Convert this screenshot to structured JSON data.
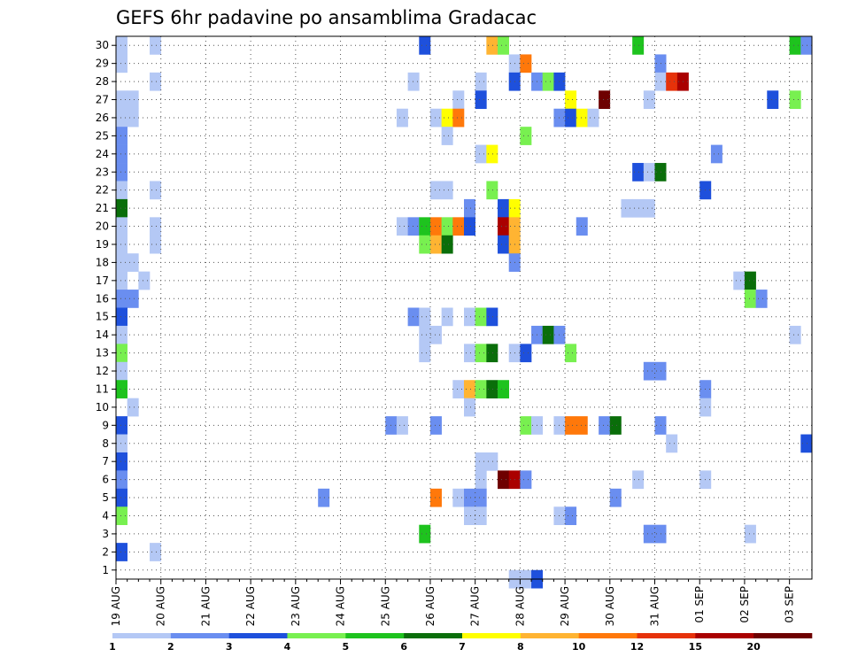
{
  "chart_data": {
    "type": "heatmap",
    "title": "GEFS 6hr padavine po ansamblima Gradacac",
    "xlabel": "",
    "ylabel": "",
    "x_tick_labels": [
      "19 AUG",
      "20 AUG",
      "21 AUG",
      "22 AUG",
      "23 AUG",
      "24 AUG",
      "25 AUG",
      "26 AUG",
      "27 AUG",
      "28 AUG",
      "29 AUG",
      "30 AUG",
      "31 AUG",
      "01 SEP",
      "02 SEP",
      "03 SEP"
    ],
    "y_tick_labels": [
      "1",
      "2",
      "3",
      "4",
      "5",
      "6",
      "7",
      "8",
      "9",
      "10",
      "11",
      "12",
      "13",
      "14",
      "15",
      "16",
      "17",
      "18",
      "19",
      "20",
      "21",
      "22",
      "23",
      "24",
      "25",
      "26",
      "27",
      "28",
      "29",
      "30"
    ],
    "x_unit": "6h step from 19 AUG 00 UTC",
    "x_range": [
      0,
      61
    ],
    "y_range": [
      0.5,
      30.5
    ],
    "grid": true,
    "colorbar": {
      "labels": [
        "1",
        "2",
        "3",
        "4",
        "5",
        "6",
        "7",
        "8",
        "10",
        "12",
        "15",
        "20"
      ],
      "colors": [
        "#b4c8f5",
        "#6a8ef0",
        "#1e50dc",
        "#78f050",
        "#1ec31e",
        "#0a6e0a",
        "#ffff00",
        "#ffb432",
        "#ff780a",
        "#e6320a",
        "#aa0000",
        "#6e0000"
      ]
    },
    "cells": [
      [
        0,
        30,
        0
      ],
      [
        3,
        30,
        0
      ],
      [
        27,
        30,
        2
      ],
      [
        33,
        30,
        7
      ],
      [
        34,
        30,
        3
      ],
      [
        46,
        30,
        4
      ],
      [
        60,
        30,
        4
      ],
      [
        61,
        30,
        1
      ],
      [
        0,
        29,
        0
      ],
      [
        35,
        29,
        0
      ],
      [
        36,
        29,
        8
      ],
      [
        48,
        29,
        1
      ],
      [
        3,
        28,
        0
      ],
      [
        26,
        28,
        0
      ],
      [
        32,
        28,
        0
      ],
      [
        35,
        28,
        2
      ],
      [
        37,
        28,
        1
      ],
      [
        38,
        28,
        3
      ],
      [
        39,
        28,
        2
      ],
      [
        48,
        28,
        0
      ],
      [
        49,
        28,
        9
      ],
      [
        50,
        28,
        10
      ],
      [
        0,
        27,
        0
      ],
      [
        1,
        27,
        0
      ],
      [
        30,
        27,
        0
      ],
      [
        32,
        27,
        2
      ],
      [
        40,
        27,
        6
      ],
      [
        43,
        27,
        11
      ],
      [
        47,
        27,
        0
      ],
      [
        58,
        27,
        2
      ],
      [
        60,
        27,
        3
      ],
      [
        0,
        26,
        0
      ],
      [
        1,
        26,
        0
      ],
      [
        25,
        26,
        0
      ],
      [
        28,
        26,
        0
      ],
      [
        29,
        26,
        6
      ],
      [
        30,
        26,
        8
      ],
      [
        39,
        26,
        1
      ],
      [
        40,
        26,
        2
      ],
      [
        41,
        26,
        6
      ],
      [
        42,
        26,
        0
      ],
      [
        0,
        25,
        1
      ],
      [
        29,
        25,
        0
      ],
      [
        36,
        25,
        3
      ],
      [
        0,
        24,
        1
      ],
      [
        32,
        24,
        0
      ],
      [
        33,
        24,
        6
      ],
      [
        53,
        24,
        1
      ],
      [
        0,
        23,
        1
      ],
      [
        46,
        23,
        2
      ],
      [
        47,
        23,
        0
      ],
      [
        48,
        23,
        5
      ],
      [
        0,
        22,
        0
      ],
      [
        3,
        22,
        0
      ],
      [
        28,
        22,
        0
      ],
      [
        29,
        22,
        0
      ],
      [
        33,
        22,
        3
      ],
      [
        52,
        22,
        2
      ],
      [
        0,
        21,
        5
      ],
      [
        31,
        21,
        1
      ],
      [
        34,
        21,
        2
      ],
      [
        35,
        21,
        6
      ],
      [
        45,
        21,
        0
      ],
      [
        46,
        21,
        0
      ],
      [
        47,
        21,
        0
      ],
      [
        0,
        20,
        0
      ],
      [
        3,
        20,
        0
      ],
      [
        25,
        20,
        0
      ],
      [
        26,
        20,
        1
      ],
      [
        27,
        20,
        4
      ],
      [
        28,
        20,
        8
      ],
      [
        29,
        20,
        3
      ],
      [
        30,
        20,
        8
      ],
      [
        31,
        20,
        2
      ],
      [
        34,
        20,
        10
      ],
      [
        35,
        20,
        7
      ],
      [
        41,
        20,
        1
      ],
      [
        0,
        19,
        0
      ],
      [
        3,
        19,
        0
      ],
      [
        27,
        19,
        3
      ],
      [
        28,
        19,
        7
      ],
      [
        29,
        19,
        5
      ],
      [
        34,
        19,
        2
      ],
      [
        35,
        19,
        7
      ],
      [
        0,
        18,
        0
      ],
      [
        1,
        18,
        0
      ],
      [
        35,
        18,
        1
      ],
      [
        0,
        17,
        0
      ],
      [
        2,
        17,
        0
      ],
      [
        55,
        17,
        0
      ],
      [
        56,
        17,
        5
      ],
      [
        0,
        16,
        1
      ],
      [
        1,
        16,
        1
      ],
      [
        56,
        16,
        3
      ],
      [
        57,
        16,
        1
      ],
      [
        0,
        15,
        2
      ],
      [
        26,
        15,
        1
      ],
      [
        27,
        15,
        0
      ],
      [
        29,
        15,
        0
      ],
      [
        31,
        15,
        0
      ],
      [
        32,
        15,
        3
      ],
      [
        33,
        15,
        2
      ],
      [
        0,
        14,
        0
      ],
      [
        27,
        14,
        0
      ],
      [
        28,
        14,
        0
      ],
      [
        37,
        14,
        1
      ],
      [
        38,
        14,
        5
      ],
      [
        39,
        14,
        1
      ],
      [
        60,
        14,
        0
      ],
      [
        0,
        13,
        3
      ],
      [
        27,
        13,
        0
      ],
      [
        31,
        13,
        0
      ],
      [
        32,
        13,
        3
      ],
      [
        33,
        13,
        5
      ],
      [
        35,
        13,
        0
      ],
      [
        36,
        13,
        2
      ],
      [
        40,
        13,
        3
      ],
      [
        0,
        12,
        0
      ],
      [
        47,
        12,
        1
      ],
      [
        48,
        12,
        1
      ],
      [
        0,
        11,
        4
      ],
      [
        30,
        11,
        0
      ],
      [
        31,
        11,
        7
      ],
      [
        32,
        11,
        3
      ],
      [
        33,
        11,
        5
      ],
      [
        34,
        11,
        4
      ],
      [
        52,
        11,
        1
      ],
      [
        1,
        10,
        0
      ],
      [
        31,
        10,
        0
      ],
      [
        52,
        10,
        0
      ],
      [
        0,
        9,
        2
      ],
      [
        24,
        9,
        1
      ],
      [
        25,
        9,
        0
      ],
      [
        28,
        9,
        1
      ],
      [
        36,
        9,
        3
      ],
      [
        37,
        9,
        0
      ],
      [
        39,
        9,
        0
      ],
      [
        40,
        9,
        8
      ],
      [
        41,
        9,
        8
      ],
      [
        43,
        9,
        1
      ],
      [
        44,
        9,
        5
      ],
      [
        48,
        9,
        1
      ],
      [
        0,
        8,
        0
      ],
      [
        49,
        8,
        0
      ],
      [
        61,
        8,
        2
      ],
      [
        0,
        7,
        2
      ],
      [
        32,
        7,
        0
      ],
      [
        33,
        7,
        0
      ],
      [
        0,
        6,
        1
      ],
      [
        32,
        6,
        0
      ],
      [
        34,
        6,
        11
      ],
      [
        35,
        6,
        10
      ],
      [
        36,
        6,
        1
      ],
      [
        46,
        6,
        0
      ],
      [
        52,
        6,
        0
      ],
      [
        0,
        5,
        2
      ],
      [
        18,
        5,
        1
      ],
      [
        28,
        5,
        8
      ],
      [
        30,
        5,
        0
      ],
      [
        31,
        5,
        1
      ],
      [
        32,
        5,
        1
      ],
      [
        44,
        5,
        1
      ],
      [
        0,
        4,
        3
      ],
      [
        31,
        4,
        0
      ],
      [
        32,
        4,
        0
      ],
      [
        39,
        4,
        0
      ],
      [
        40,
        4,
        1
      ],
      [
        27,
        3,
        4
      ],
      [
        47,
        3,
        1
      ],
      [
        48,
        3,
        1
      ],
      [
        56,
        3,
        0
      ],
      [
        0,
        2,
        2
      ],
      [
        3,
        2,
        0
      ],
      [
        35,
        0.5,
        0
      ],
      [
        36,
        0.5,
        0
      ],
      [
        37,
        0.5,
        2
      ]
    ]
  }
}
